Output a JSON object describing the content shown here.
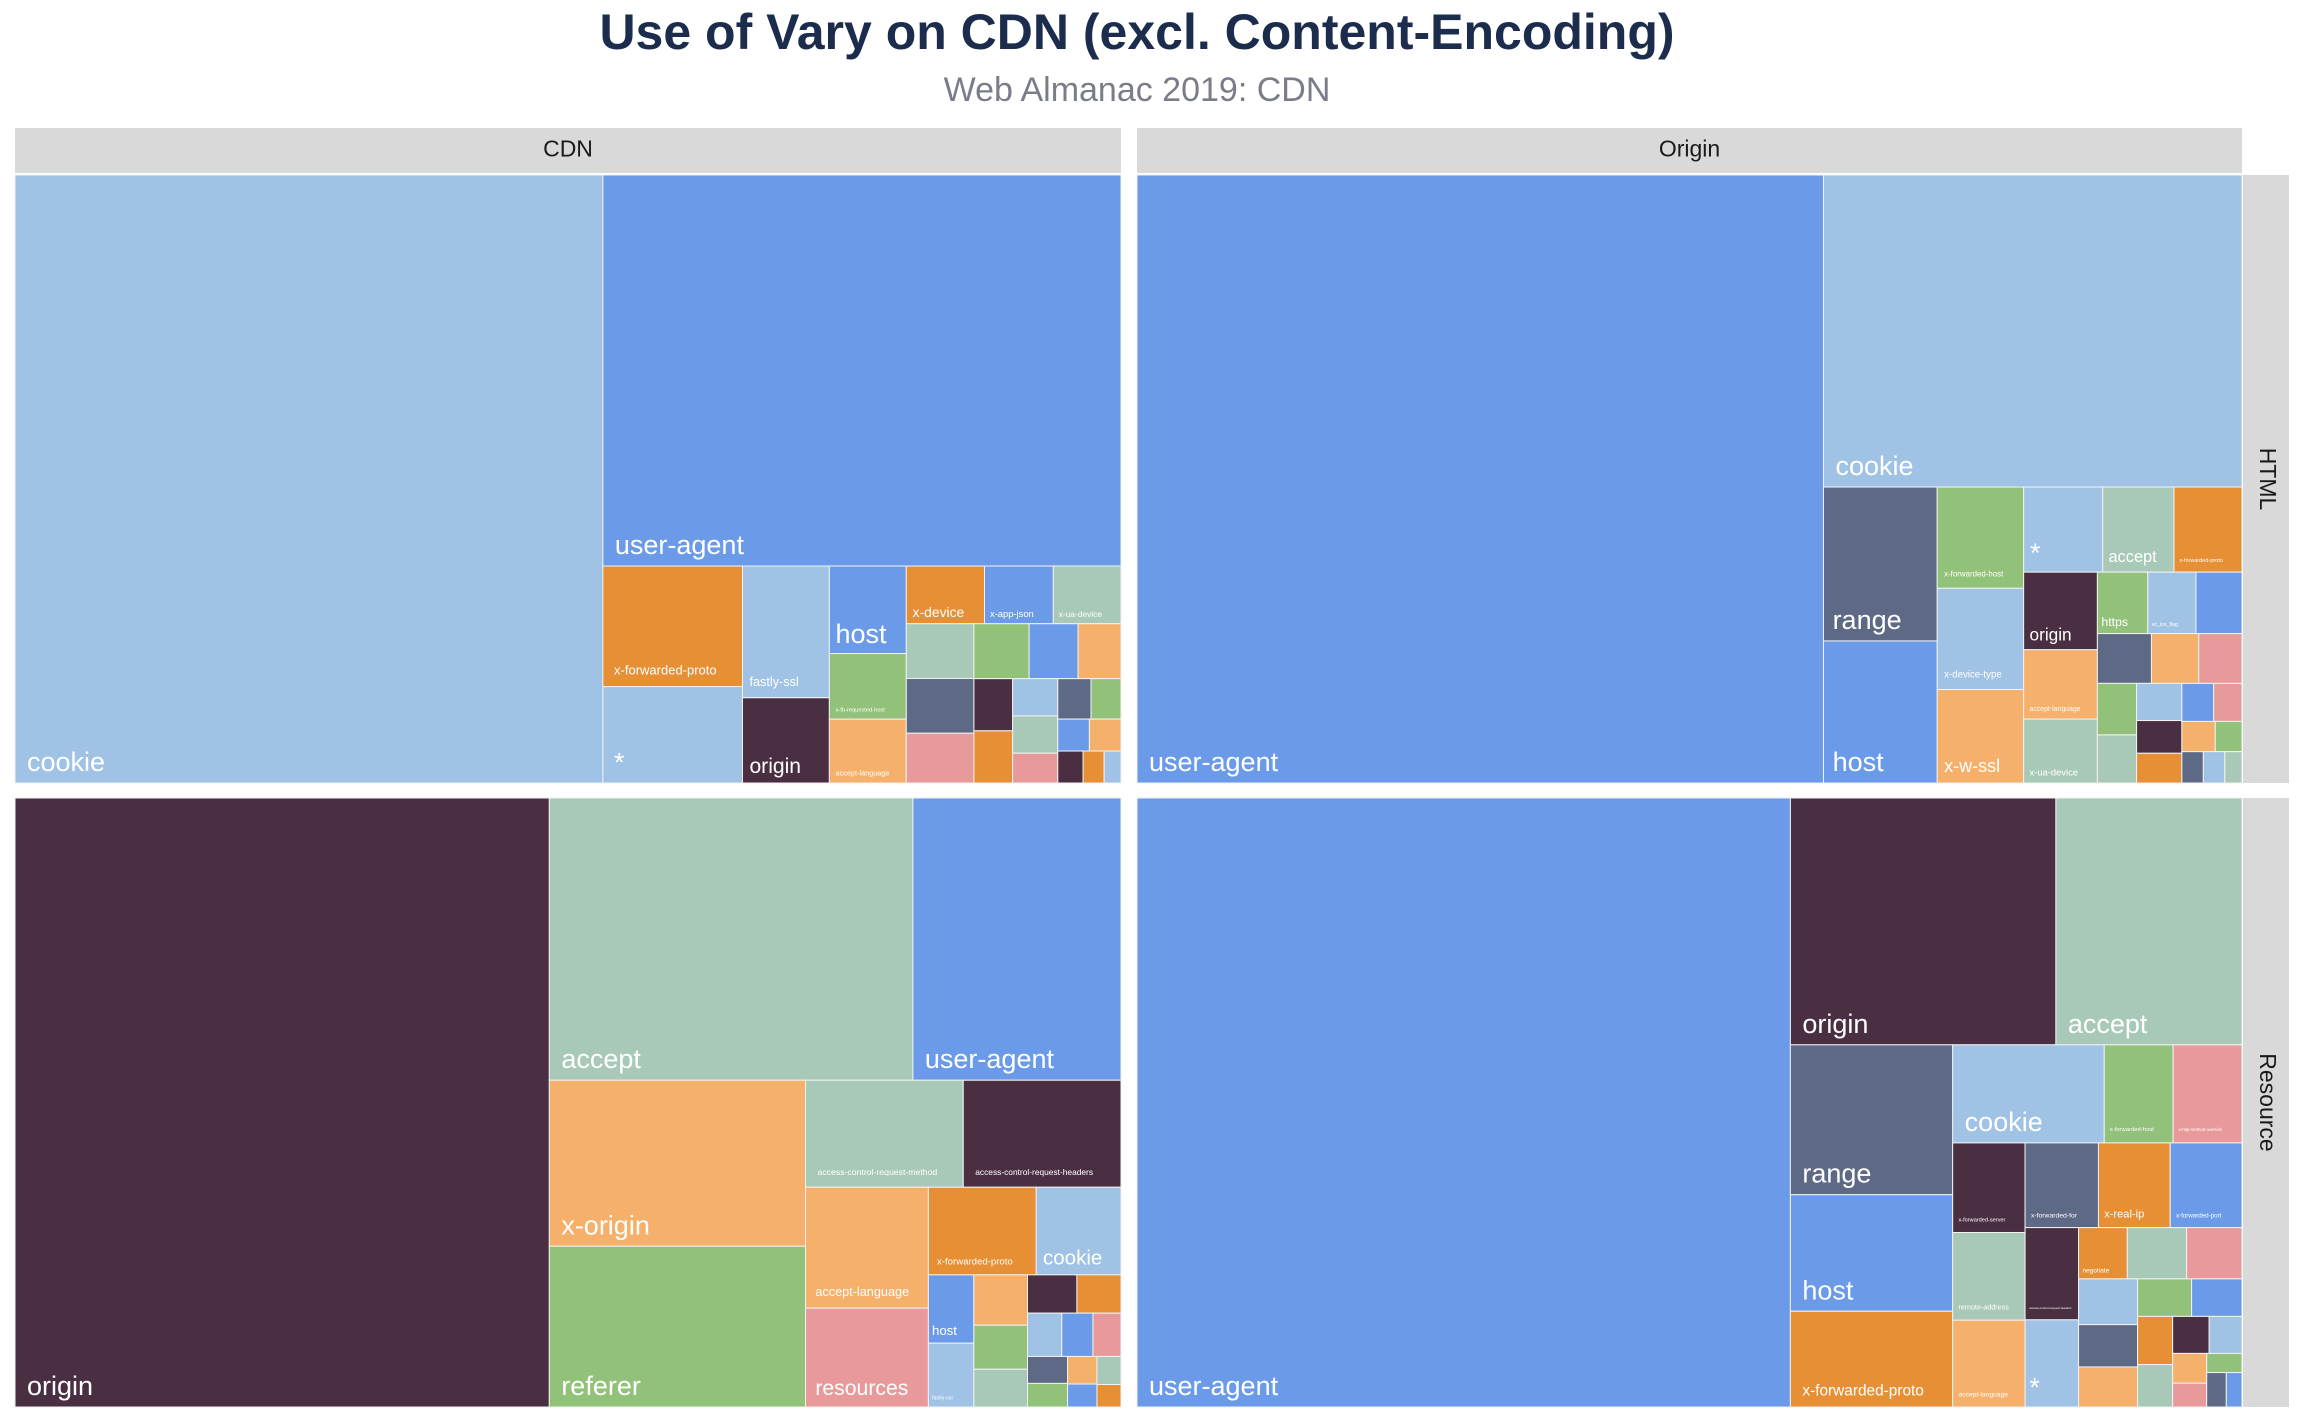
{
  "chart_data": {
    "type": "treemap",
    "title": "Use of Vary on CDN (excl. Content-Encoding)",
    "subtitle": "Web Almanac 2019: CDN",
    "columns": [
      "CDN",
      "Origin"
    ],
    "rows": [
      "HTML",
      "Resource"
    ],
    "panels": [
      [
        {
          "categories": [
            "cookie",
            "user-agent",
            "x-forwarded-proto",
            "*",
            "fastly-ssl",
            "origin",
            "host",
            "x-fb-requested-host",
            "accept-language",
            "x-device",
            "x-app-json",
            "x-ua-device",
            null,
            null,
            null,
            null,
            null,
            null,
            null,
            null,
            null,
            null,
            null,
            null,
            null,
            null,
            null,
            null,
            null,
            null
          ],
          "values": [
            53.1,
            30.1,
            2.5,
            2.0,
            1.7,
            1.1,
            1.0,
            0.75,
            0.73,
            0.67,
            0.59,
            0.58,
            0.55,
            0.55,
            0.5,
            0.45,
            0.4,
            0.35,
            0.3,
            0.3,
            0.25,
            0.25,
            0.2,
            0.2,
            0.18,
            0.15,
            0.15,
            0.12,
            0.1,
            0.08
          ],
          "colors": [
            "#9fc2e5",
            "#6b9be8",
            "#e68f35",
            "#9fc2e5",
            "#9fc2e5",
            "#4a2f42",
            "#6b9be8",
            "#92c17a",
            "#f5b06b",
            "#e68f35",
            "#6b9be8",
            "#a8c9b8",
            "#a8c9b8",
            "#5e6a85",
            "#e89a9a",
            "#92c17a",
            "#6b9be8",
            "#f5b06b",
            "#4a2f42",
            "#e68f35",
            "#9fc2e5",
            "#a8c9b8",
            "#e89a9a",
            "#5e6a85",
            "#92c17a",
            "#6b9be8",
            "#f5b06b",
            "#4a2f42",
            "#e68f35",
            "#9fc2e5"
          ]
        },
        {
          "categories": [
            "user-agent",
            "cookie",
            "range",
            "host",
            "x-forwarded-host",
            "x-device-type",
            "x-w-ssl",
            "*",
            "accept",
            "x-forwarded-proto",
            "origin",
            "accept-language",
            "x-ua-device",
            "https",
            "ec_ios_flag",
            null,
            null,
            null,
            null,
            null,
            null,
            null,
            null,
            null,
            null,
            null,
            null,
            null,
            null,
            null,
            null
          ],
          "values": [
            62.0,
            19.4,
            2.6,
            2.4,
            1.3,
            1.3,
            1.2,
            1.0,
            0.9,
            0.86,
            0.85,
            0.76,
            0.7,
            0.46,
            0.44,
            0.42,
            0.4,
            0.35,
            0.32,
            0.3,
            0.28,
            0.25,
            0.22,
            0.2,
            0.18,
            0.16,
            0.15,
            0.12,
            0.1,
            0.1,
            0.08
          ],
          "colors": [
            "#6b9be8",
            "#9fc2e5",
            "#5e6a85",
            "#6b9be8",
            "#92c17a",
            "#9fc2e5",
            "#f5b06b",
            "#9fc2e5",
            "#a8c9b8",
            "#e68f35",
            "#4a2f42",
            "#f5b06b",
            "#a8c9b8",
            "#92c17a",
            "#9fc2e5",
            "#6b9be8",
            "#5e6a85",
            "#f5b06b",
            "#e89a9a",
            "#92c17a",
            "#a8c9b8",
            "#9fc2e5",
            "#4a2f42",
            "#e68f35",
            "#6b9be8",
            "#e89a9a",
            "#f5b06b",
            "#92c17a",
            "#5e6a85",
            "#9fc2e5",
            "#a8c9b8"
          ]
        }
      ],
      [
        {
          "categories": [
            "origin",
            "accept",
            "user-agent",
            "x-origin",
            "referer",
            "access-control-request-method",
            "access-control-request-headers",
            "accept-language",
            "resources",
            "x-forwarded-proto",
            "cookie",
            "host",
            "fastly-ssl",
            null,
            null,
            null,
            null,
            null,
            null,
            null,
            null,
            null,
            null,
            null,
            null,
            null,
            null
          ],
          "values": [
            48.2,
            15.2,
            8.7,
            6.3,
            6.1,
            2.5,
            2.5,
            2.2,
            1.8,
            1.4,
            1.1,
            0.46,
            0.43,
            0.4,
            0.35,
            0.3,
            0.28,
            0.25,
            0.22,
            0.2,
            0.18,
            0.16,
            0.14,
            0.12,
            0.1,
            0.1,
            0.08
          ],
          "colors": [
            "#4a2f42",
            "#a8c9b8",
            "#6b9be8",
            "#f5b06b",
            "#92c17a",
            "#a8c9b8",
            "#4a2f42",
            "#f5b06b",
            "#e89a9a",
            "#e68f35",
            "#9fc2e5",
            "#6b9be8",
            "#9fc2e5",
            "#f5b06b",
            "#92c17a",
            "#a8c9b8",
            "#4a2f42",
            "#e68f35",
            "#9fc2e5",
            "#6b9be8",
            "#e89a9a",
            "#5e6a85",
            "#92c17a",
            "#f5b06b",
            "#6b9be8",
            "#a8c9b8",
            "#e68f35"
          ]
        },
        {
          "categories": [
            "user-agent",
            "origin",
            "accept",
            "range",
            "host",
            "x-forwarded-proto",
            "cookie",
            "x-forwarded-host",
            "x-http-method-override",
            "x-forwarded-server",
            "remote-address",
            "accept-language",
            "x-forwarded-for",
            "x-real-ip",
            "x-forwarded-port",
            "access-control-request-headers",
            "*",
            "negotiate",
            null,
            null,
            null,
            null,
            null,
            null,
            null,
            null,
            null,
            null,
            null,
            null,
            null,
            null,
            null,
            null
          ],
          "values": [
            58.9,
            9.7,
            6.8,
            3.6,
            2.8,
            2.3,
            2.2,
            1.0,
            1.0,
            0.96,
            0.94,
            0.93,
            0.92,
            0.9,
            0.9,
            0.73,
            0.69,
            0.37,
            0.45,
            0.42,
            0.4,
            0.37,
            0.35,
            0.3,
            0.28,
            0.25,
            0.22,
            0.2,
            0.18,
            0.15,
            0.12,
            0.1,
            0.1,
            0.08
          ],
          "colors": [
            "#6b9be8",
            "#4a2f42",
            "#a8c9b8",
            "#5e6a85",
            "#6b9be8",
            "#e68f35",
            "#9fc2e5",
            "#92c17a",
            "#e89a9a",
            "#4a2f42",
            "#a8c9b8",
            "#f5b06b",
            "#5e6a85",
            "#e68f35",
            "#6b9be8",
            "#4a2f42",
            "#9fc2e5",
            "#e68f35",
            "#a8c9b8",
            "#e89a9a",
            "#9fc2e5",
            "#5e6a85",
            "#f5b06b",
            "#92c17a",
            "#6b9be8",
            "#e68f35",
            "#a8c9b8",
            "#4a2f42",
            "#9fc2e5",
            "#f5b06b",
            "#e89a9a",
            "#92c17a",
            "#5e6a85",
            "#6b9be8"
          ]
        }
      ]
    ]
  }
}
